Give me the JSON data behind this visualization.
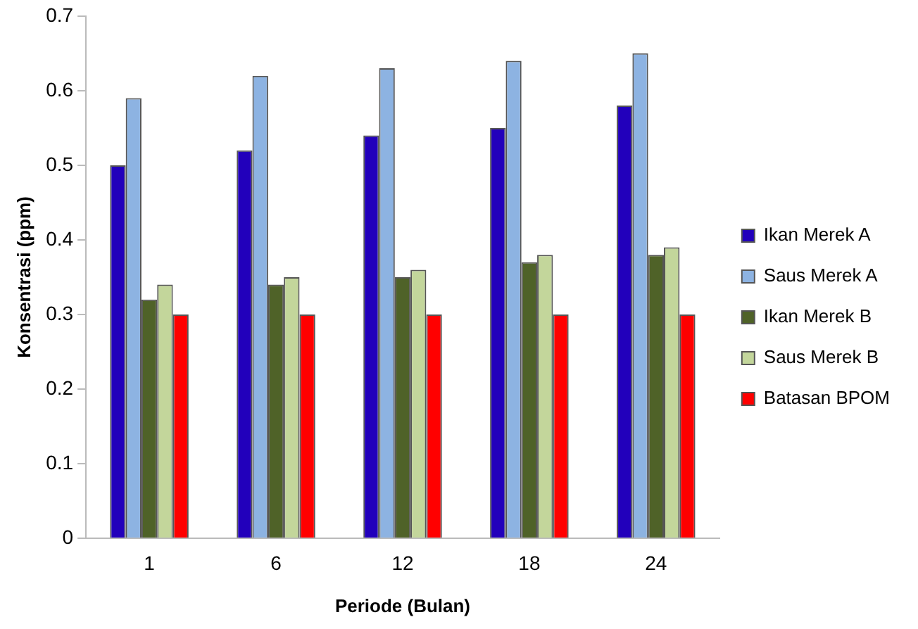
{
  "chart_data": {
    "type": "bar",
    "xlabel": "Periode (Bulan)",
    "ylabel": "Konsentrasi (ppm)",
    "categories": [
      "1",
      "6",
      "12",
      "18",
      "24"
    ],
    "series": [
      {
        "name": "Ikan Merek A",
        "color": "#2200bb",
        "values": [
          0.5,
          0.52,
          0.54,
          0.55,
          0.58
        ]
      },
      {
        "name": "Saus Merek A",
        "color": "#8db3e2",
        "values": [
          0.59,
          0.62,
          0.63,
          0.64,
          0.65
        ]
      },
      {
        "name": "Ikan Merek B",
        "color": "#4f6228",
        "values": [
          0.32,
          0.34,
          0.35,
          0.37,
          0.38
        ]
      },
      {
        "name": "Saus Merek B",
        "color": "#c3d69b",
        "values": [
          0.34,
          0.35,
          0.36,
          0.38,
          0.39
        ]
      },
      {
        "name": "Batasan BPOM",
        "color": "#ff0000",
        "values": [
          0.3,
          0.3,
          0.3,
          0.3,
          0.3
        ]
      }
    ],
    "ylim": [
      0,
      0.7
    ],
    "yticks": [
      0,
      0.1,
      0.2,
      0.3,
      0.4,
      0.5,
      0.6,
      0.7
    ],
    "grid": false,
    "legend": "right"
  }
}
